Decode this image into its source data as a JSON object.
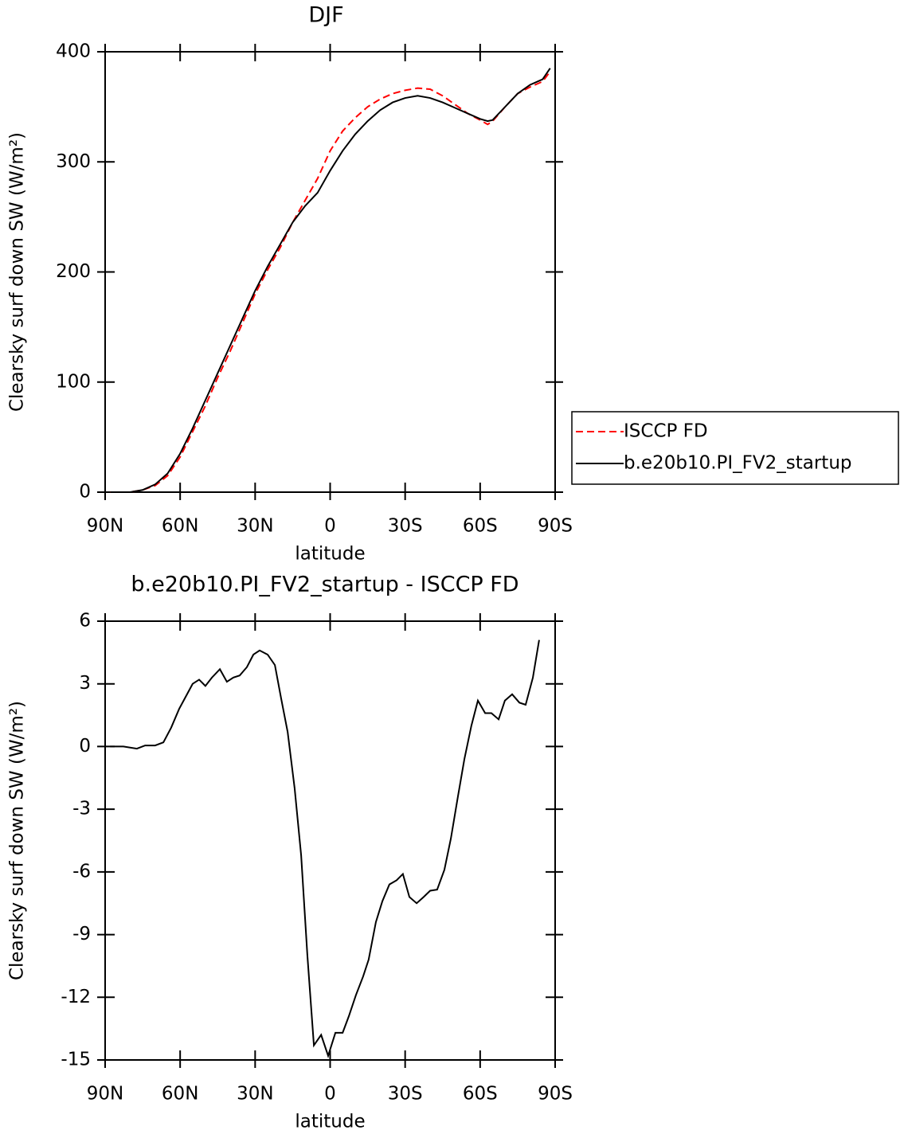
{
  "chart_data": [
    {
      "type": "line",
      "title": "DJF",
      "xlabel": "latitude",
      "ylabel": "Clearsky surf down SW (W/m²)",
      "x": [
        88,
        80,
        75,
        70,
        65,
        60,
        55,
        50,
        45,
        40,
        35,
        30,
        25,
        20,
        15,
        10,
        5,
        0,
        -5,
        -10,
        -15,
        -20,
        -25,
        -30,
        -35,
        -40,
        -45,
        -50,
        -55,
        -60,
        -63,
        -65,
        -70,
        -75,
        -80,
        -85,
        -88
      ],
      "series": [
        {
          "name": "ISCCP FD",
          "color": "#ff0000",
          "dash": true,
          "values": [
            0,
            0,
            2,
            6,
            15,
            32,
            55,
            78,
            104,
            128,
            154,
            180,
            202,
            222,
            245,
            265,
            285,
            310,
            328,
            340,
            350,
            357,
            362,
            365,
            367,
            366,
            360,
            352,
            344,
            338,
            334,
            337,
            350,
            362,
            368,
            373,
            382
          ]
        },
        {
          "name": "b.e20b10.PI_FV2_startup",
          "color": "#000000",
          "dash": false,
          "values": [
            0,
            0,
            2,
            7,
            17,
            35,
            58,
            83,
            108,
            133,
            158,
            183,
            205,
            225,
            245,
            260,
            272,
            292,
            310,
            325,
            337,
            347,
            354,
            358,
            360,
            358,
            354,
            349,
            344,
            339,
            337,
            338,
            350,
            362,
            370,
            375,
            385
          ]
        }
      ],
      "xlim": [
        90,
        -90
      ],
      "xticks": [
        {
          "value": 90,
          "label": "90N"
        },
        {
          "value": 60,
          "label": "60N"
        },
        {
          "value": 30,
          "label": "30N"
        },
        0,
        {
          "value": -30,
          "label": "30S"
        },
        {
          "value": -60,
          "label": "60S"
        },
        {
          "value": -90,
          "label": "90S"
        }
      ],
      "ylim": [
        0,
        400
      ],
      "yticks": [
        0,
        100,
        200,
        300,
        400
      ],
      "legend": "right"
    },
    {
      "type": "line",
      "title": "b.e20b10.PI_FV2_startup - ISCCP FD",
      "xlabel": "latitude",
      "ylabel": "Clearsky surf down SW (W/m²)",
      "x": [
        88,
        82.7,
        77.3,
        74,
        70,
        66.7,
        63.6,
        60.4,
        55,
        52.4,
        49.9,
        47.3,
        44.1,
        41.3,
        38.7,
        36.2,
        33.3,
        30.7,
        28.2,
        25,
        22.1,
        19.6,
        17,
        14.2,
        11.6,
        9.1,
        6.5,
        3.6,
        0.8,
        -2.1,
        -5,
        -7.5,
        -10.3,
        -13.2,
        -15.4,
        -18.3,
        -20.9,
        -23.7,
        -26.6,
        -29.1,
        -31.7,
        -34.6,
        -37.4,
        -40,
        -42.8,
        -45.7,
        -48.3,
        -51.1,
        -53.7,
        -56.5,
        -59.1,
        -62,
        -64.5,
        -67.4,
        -69.9,
        -72.8,
        -75.7,
        -78.2,
        -81.1,
        -83.6
      ],
      "series": [
        {
          "color": "#000000",
          "dash": false,
          "values": [
            0,
            0,
            -0.1,
            0.05,
            0.05,
            0.2,
            0.9,
            1.8,
            3.0,
            3.2,
            2.9,
            3.3,
            3.7,
            3.1,
            3.3,
            3.4,
            3.8,
            4.4,
            4.6,
            4.4,
            3.9,
            2.3,
            0.7,
            -2,
            -5.2,
            -10,
            -14.3,
            -13.8,
            -14.8,
            -13.7,
            -13.7,
            -12.9,
            -11.9,
            -11,
            -10.2,
            -8.4,
            -7.4,
            -6.6,
            -6.4,
            -6.1,
            -7.2,
            -7.5,
            -7.2,
            -6.9,
            -6.85,
            -5.9,
            -4.4,
            -2.4,
            -0.6,
            1.0,
            2.2,
            1.6,
            1.6,
            1.3,
            2.2,
            2.5,
            2.1,
            2.0,
            3.3,
            5.1
          ]
        }
      ],
      "xlim": [
        90,
        -90
      ],
      "xticks": [
        {
          "value": 90,
          "label": "90N"
        },
        {
          "value": 60,
          "label": "60N"
        },
        {
          "value": 30,
          "label": "30N"
        },
        0,
        {
          "value": -30,
          "label": "30S"
        },
        {
          "value": -60,
          "label": "60S"
        },
        {
          "value": -90,
          "label": "90S"
        }
      ],
      "ylim": [
        -15,
        6
      ],
      "yticks": [
        -15,
        -12,
        -9,
        -6,
        -3,
        0,
        3,
        6
      ]
    }
  ]
}
